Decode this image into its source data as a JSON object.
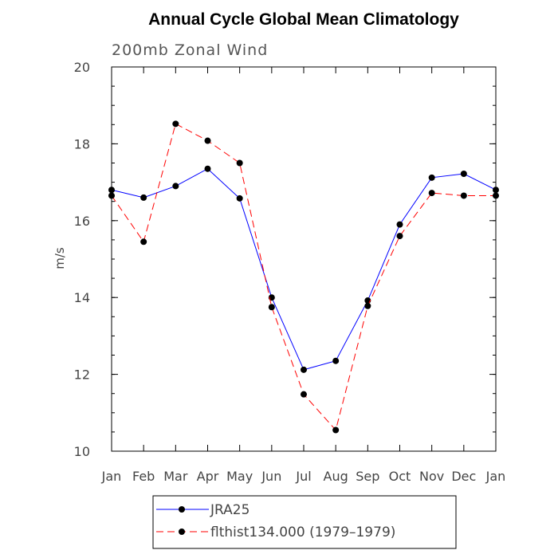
{
  "chart_data": {
    "type": "line",
    "title": "Annual Cycle Global Mean Climatology",
    "subtitle": "200mb Zonal Wind",
    "xlabel": "",
    "ylabel": "m/s",
    "categories": [
      "Jan",
      "Feb",
      "Mar",
      "Apr",
      "May",
      "Jun",
      "Jul",
      "Aug",
      "Sep",
      "Oct",
      "Nov",
      "Dec",
      "Jan"
    ],
    "ylim": [
      10,
      20
    ],
    "yticks": [
      10,
      12,
      14,
      16,
      18,
      20
    ],
    "grid": false,
    "legend_position": "bottom",
    "series": [
      {
        "name": "JRA25",
        "color": "#0000ff",
        "dash": "solid",
        "marker": "dot",
        "values": [
          16.8,
          16.6,
          16.9,
          17.35,
          16.58,
          14.0,
          12.12,
          12.35,
          13.92,
          15.9,
          17.12,
          17.22,
          16.8
        ]
      },
      {
        "name": "flthist134.000 (1979–1979)",
        "color": "#ff0000",
        "dash": "dashed",
        "marker": "dot",
        "values": [
          16.65,
          15.45,
          18.52,
          18.08,
          17.5,
          13.75,
          11.48,
          10.55,
          13.78,
          15.6,
          16.72,
          16.65,
          16.65
        ]
      }
    ]
  }
}
